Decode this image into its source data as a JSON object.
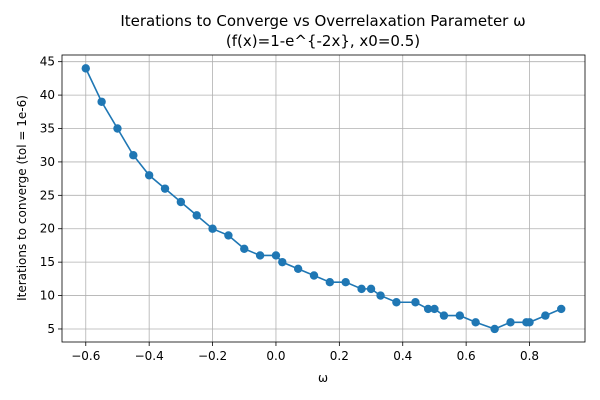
{
  "chart_data": {
    "type": "line",
    "title": "Iterations to Converge vs Overrelaxation Parameter ω",
    "subtitle": "(f(x)=1-e^{-2x}, x0=0.5)",
    "xlabel": "ω",
    "ylabel": "Iterations to converge (tol = 1e-6)",
    "xlim": [
      -0.675,
      0.975
    ],
    "ylim": [
      3.05,
      46.0
    ],
    "xticks": [
      -0.6,
      -0.4,
      -0.2,
      0.0,
      0.2,
      0.4,
      0.6,
      0.8
    ],
    "xtick_labels": [
      "−0.6",
      "−0.4",
      "−0.2",
      "0.0",
      "0.2",
      "0.4",
      "0.6",
      "0.8"
    ],
    "yticks": [
      5,
      10,
      15,
      20,
      25,
      30,
      35,
      40,
      45
    ],
    "ytick_labels": [
      "5",
      "10",
      "15",
      "20",
      "25",
      "30",
      "35",
      "40",
      "45"
    ],
    "grid": true,
    "color": "#1f77b4",
    "series": [
      {
        "x": [
          -0.6,
          -0.55,
          -0.5,
          -0.45,
          -0.4,
          -0.35,
          -0.3,
          -0.25,
          -0.2,
          -0.15,
          -0.1,
          -0.05,
          0.0,
          0.02,
          0.07,
          0.12,
          0.17,
          0.22,
          0.27,
          0.3,
          0.33,
          0.38,
          0.44,
          0.48,
          0.5,
          0.53,
          0.58,
          0.63,
          0.69,
          0.74,
          0.79,
          0.8,
          0.85,
          0.9
        ],
        "y": [
          44,
          39,
          35,
          31,
          28,
          26,
          24,
          22,
          20,
          19,
          17,
          16,
          16,
          15,
          14,
          13,
          12,
          12,
          11,
          11,
          10,
          9,
          9,
          8,
          8,
          7,
          7,
          6,
          5,
          6,
          6,
          6,
          7,
          8
        ]
      }
    ]
  }
}
